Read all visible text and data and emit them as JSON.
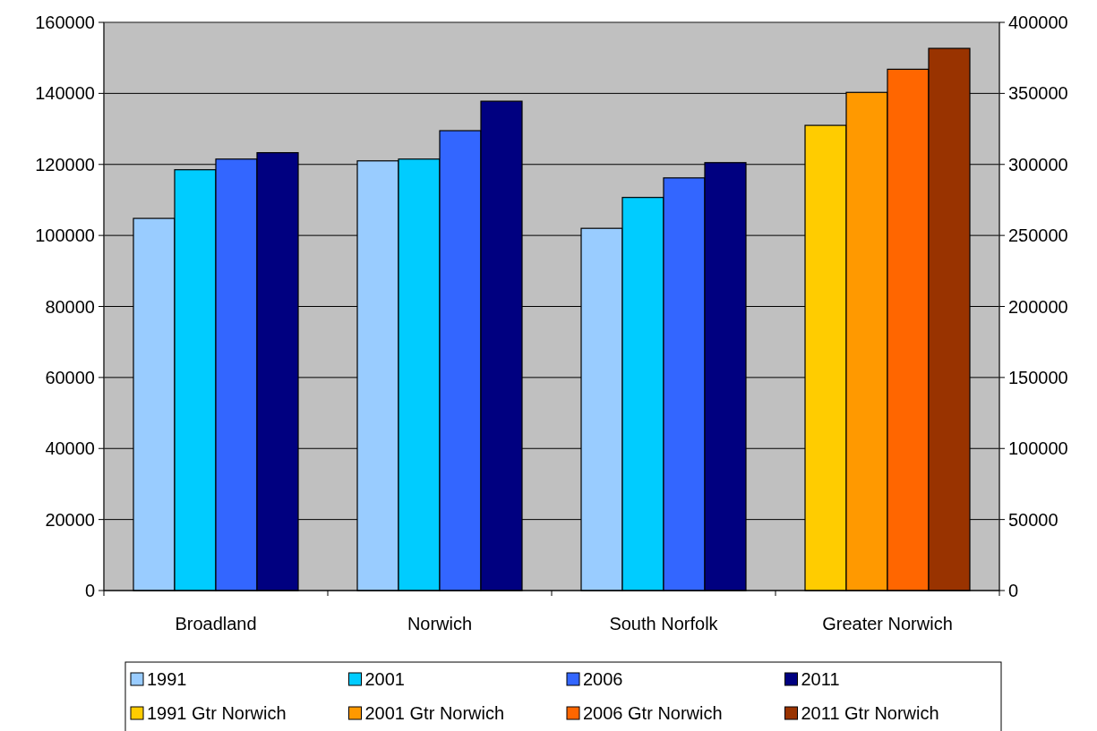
{
  "chart_data": {
    "type": "bar",
    "categories": [
      "Broadland",
      "Norwich",
      "South Norfolk",
      "Greater Norwich"
    ],
    "series": [
      {
        "name": "1991",
        "color": "#99ccff",
        "values": [
          104800,
          121000,
          102000,
          null
        ]
      },
      {
        "name": "2001",
        "color": "#00ccff",
        "values": [
          118500,
          121500,
          110700,
          null
        ]
      },
      {
        "name": "2006",
        "color": "#3366ff",
        "values": [
          121500,
          129500,
          116200,
          null
        ]
      },
      {
        "name": "2011",
        "color": "#000080",
        "values": [
          123300,
          137800,
          120500,
          null
        ]
      },
      {
        "name": "1991 Gtr Norwich",
        "color": "#ffcc00",
        "axis": "y2",
        "values": [
          null,
          null,
          null,
          327500
        ]
      },
      {
        "name": "2001 Gtr Norwich",
        "color": "#ff9900",
        "axis": "y2",
        "values": [
          null,
          null,
          null,
          350700
        ]
      },
      {
        "name": "2006 Gtr Norwich",
        "color": "#ff6600",
        "axis": "y2",
        "values": [
          null,
          null,
          null,
          367000
        ]
      },
      {
        "name": "2011 Gtr Norwich",
        "color": "#993300",
        "axis": "y2",
        "values": [
          null,
          null,
          null,
          381700
        ]
      }
    ],
    "ylim": [
      0,
      160000
    ],
    "yticks": [
      0,
      20000,
      40000,
      60000,
      80000,
      100000,
      120000,
      140000,
      160000
    ],
    "y2lim": [
      0,
      400000
    ],
    "y2ticks": [
      0,
      50000,
      100000,
      150000,
      200000,
      250000,
      300000,
      350000,
      400000
    ],
    "grid": "y",
    "legend": "bottom"
  }
}
